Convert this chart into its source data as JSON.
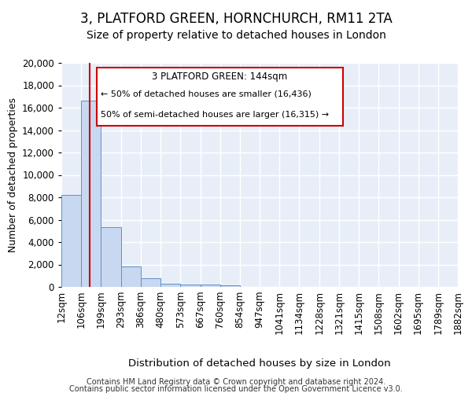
{
  "title1": "3, PLATFORD GREEN, HORNCHURCH, RM11 2TA",
  "title2": "Size of property relative to detached houses in London",
  "xlabel": "Distribution of detached houses by size in London",
  "ylabel": "Number of detached properties",
  "footer1": "Contains HM Land Registry data © Crown copyright and database right 2024.",
  "footer2": "Contains public sector information licensed under the Open Government Licence v3.0.",
  "bin_edges": [
    12,
    106,
    199,
    293,
    386,
    480,
    573,
    667,
    760,
    854,
    947,
    1041,
    1134,
    1228,
    1321,
    1415,
    1508,
    1602,
    1695,
    1789,
    1882
  ],
  "bar_heights": [
    8200,
    16600,
    5300,
    1850,
    750,
    300,
    230,
    200,
    150,
    0,
    0,
    0,
    0,
    0,
    0,
    0,
    0,
    0,
    0,
    0
  ],
  "bar_color": "#c8d8f0",
  "bar_edge_color": "#6090c8",
  "bg_color": "#e8eef8",
  "grid_color": "#ffffff",
  "property_size": 144,
  "red_line_color": "#cc0000",
  "annotation_line1": "3 PLATFORD GREEN: 144sqm",
  "annotation_line2": "← 50% of detached houses are smaller (16,436)",
  "annotation_line3": "50% of semi-detached houses are larger (16,315) →",
  "annotation_box_color": "#ffffff",
  "annotation_border_color": "#cc0000",
  "ylim": [
    0,
    20000
  ],
  "yticks": [
    0,
    2000,
    4000,
    6000,
    8000,
    10000,
    12000,
    14000,
    16000,
    18000,
    20000
  ],
  "tick_fontsize": 8.5,
  "title1_fontsize": 12,
  "title2_fontsize": 10,
  "xlabel_fontsize": 9.5,
  "ylabel_fontsize": 9
}
